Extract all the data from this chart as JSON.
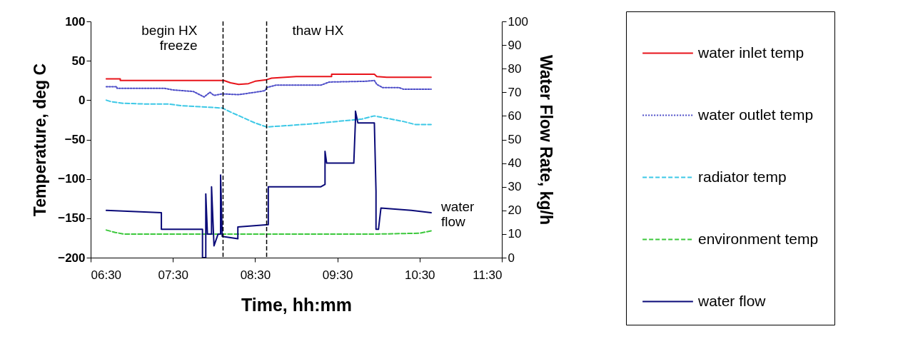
{
  "chart_data": {
    "type": "line",
    "xlabel": "Time, hh:mm",
    "ylabel": "Temperature, deg C",
    "y2label": "Water Flow Rate, kg/h",
    "xlim": [
      6.5,
      11.5
    ],
    "xticks": [
      {
        "value": 6.5,
        "label": "06:30"
      },
      {
        "value": 7.5,
        "label": "07:30"
      },
      {
        "value": 8.5,
        "label": "08:30"
      },
      {
        "value": 9.5,
        "label": "09:30"
      },
      {
        "value": 10.5,
        "label": "10:30"
      },
      {
        "value": 11.5,
        "label": "11:30"
      }
    ],
    "ylim": [
      -200,
      100
    ],
    "yticks": [
      -200,
      -150,
      -100,
      -50,
      0,
      50,
      100
    ],
    "y2lim": [
      0,
      100
    ],
    "y2ticks": [
      0,
      10,
      20,
      30,
      40,
      50,
      60,
      70,
      80,
      90,
      100
    ],
    "legend": "right",
    "series": [
      {
        "name": "water inlet temp",
        "color": "#e8141b",
        "line_style": "solid",
        "x": [
          6.69,
          6.86,
          6.86,
          8.12,
          8.2,
          8.3,
          8.42,
          8.5,
          8.64,
          8.7,
          9.0,
          9.43,
          9.43,
          9.95,
          9.98,
          10.1,
          10.64
        ],
        "values": [
          27,
          27,
          25,
          25,
          22,
          20,
          21,
          24,
          26,
          28,
          30,
          30,
          33,
          33,
          30,
          29,
          29
        ]
      },
      {
        "name": "water outlet temp",
        "color": "#4b4bc8",
        "line_style": "dotted",
        "x": [
          6.69,
          6.82,
          6.82,
          7.4,
          7.5,
          7.75,
          7.88,
          7.95,
          8.0,
          8.1,
          8.3,
          8.5,
          8.62,
          8.64,
          8.75,
          9.3,
          9.4,
          9.85,
          9.95,
          9.98,
          10.05,
          10.25,
          10.3,
          10.64
        ],
        "values": [
          17,
          17,
          15,
          15,
          13,
          11,
          4,
          10,
          6,
          8,
          7,
          10,
          12,
          16,
          19,
          19,
          23,
          24,
          25,
          20,
          16,
          16,
          14,
          14
        ]
      },
      {
        "name": "radiator temp",
        "color": "#3cc8e6",
        "line_style": "dashed",
        "x": [
          6.69,
          6.75,
          6.9,
          7.2,
          7.45,
          7.6,
          8.1,
          8.2,
          8.35,
          8.5,
          8.64,
          8.8,
          9.2,
          9.5,
          9.8,
          9.95,
          10.1,
          10.3,
          10.45,
          10.64
        ],
        "values": [
          0,
          -2,
          -4,
          -5,
          -5,
          -7,
          -10,
          -15,
          -22,
          -29,
          -34,
          -33,
          -30,
          -27,
          -24,
          -20,
          -23,
          -27,
          -31,
          -31
        ]
      },
      {
        "name": "environment temp",
        "color": "#3cc83c",
        "line_style": "dashed",
        "x": [
          6.69,
          6.8,
          6.9,
          10.0,
          10.5,
          10.64
        ],
        "values": [
          -165,
          -168,
          -170,
          -170,
          -169,
          -166
        ]
      },
      {
        "name": "water flow",
        "color": "#0a0a78",
        "line_style": "solid",
        "axis": "y2",
        "x": [
          6.69,
          7.36,
          7.36,
          7.86,
          7.86,
          7.9,
          7.9,
          7.92,
          7.97,
          7.97,
          8.0,
          8.05,
          8.08,
          8.08,
          8.1,
          8.29,
          8.29,
          8.66,
          8.66,
          9.3,
          9.35,
          9.35,
          9.37,
          9.7,
          9.72,
          9.72,
          9.75,
          9.95,
          9.97,
          9.97,
          10.0,
          10.03,
          10.4,
          10.64
        ],
        "values": [
          20,
          19,
          12,
          12,
          0,
          0,
          27,
          10,
          10,
          30,
          5,
          10,
          10,
          35,
          9,
          8,
          13,
          14,
          30,
          30,
          31,
          45,
          40,
          40,
          58,
          62,
          57,
          57,
          28,
          12,
          12,
          21,
          20,
          19
        ]
      }
    ],
    "ref_lines": [
      {
        "axis": "x",
        "value": 8.11,
        "label": "begin HX\nfreeze",
        "line_style": "dashed",
        "color": "#000000"
      },
      {
        "axis": "x",
        "value": 8.64,
        "label": "thaw HX",
        "line_style": "dashed",
        "color": "#000000"
      }
    ],
    "annotations": [
      "water\nflow"
    ]
  }
}
